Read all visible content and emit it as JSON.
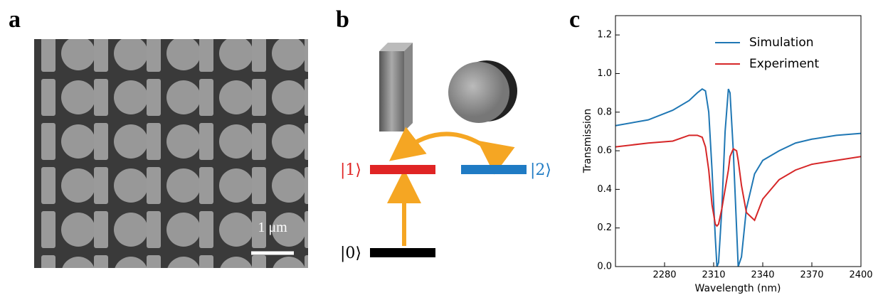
{
  "figure": {
    "panel_labels": [
      "a",
      "b",
      "c"
    ],
    "scale_bar": "1 μm",
    "states": {
      "one": "|1⟩",
      "two": "|2⟩",
      "zero": "|0⟩"
    }
  },
  "chart_data": {
    "type": "line",
    "xlabel": "Wavelength (nm)",
    "ylabel": "Transmission",
    "x": [
      2250,
      2270,
      2285,
      2295,
      2300,
      2303,
      2305,
      2307,
      2309,
      2311,
      2312,
      2313,
      2315,
      2317,
      2319,
      2320,
      2322,
      2324,
      2325,
      2327,
      2330,
      2335,
      2340,
      2350,
      2360,
      2370,
      2385,
      2400
    ],
    "series": [
      {
        "name": "Simulation",
        "color": "#1f77b4",
        "values": [
          0.73,
          0.76,
          0.81,
          0.86,
          0.9,
          0.92,
          0.91,
          0.8,
          0.5,
          0.15,
          0.0,
          0.02,
          0.3,
          0.7,
          0.92,
          0.9,
          0.6,
          0.2,
          0.0,
          0.05,
          0.3,
          0.48,
          0.55,
          0.6,
          0.64,
          0.66,
          0.68,
          0.69
        ]
      },
      {
        "name": "Experiment",
        "color": "#d62728",
        "values": [
          0.62,
          0.64,
          0.65,
          0.68,
          0.68,
          0.67,
          0.62,
          0.5,
          0.32,
          0.22,
          0.21,
          0.22,
          0.3,
          0.4,
          0.5,
          0.57,
          0.61,
          0.6,
          0.55,
          0.42,
          0.28,
          0.24,
          0.35,
          0.45,
          0.5,
          0.53,
          0.55,
          0.57
        ]
      }
    ],
    "xlim": [
      2250,
      2400
    ],
    "xticks": [
      2280,
      2310,
      2340,
      2370,
      2400
    ],
    "ylim": [
      0,
      1.3
    ],
    "yticks": [
      {
        "value": 0,
        "label": "0.0"
      },
      {
        "value": 0.2,
        "label": "0.2"
      },
      {
        "value": 0.4,
        "label": "0.4"
      },
      {
        "value": 0.6,
        "label": "0.6"
      },
      {
        "value": 0.8,
        "label": "0.8"
      },
      {
        "value": 1,
        "label": "1.0"
      },
      {
        "value": 1.2,
        "label": "1.2"
      }
    ],
    "legend": "upper right"
  }
}
